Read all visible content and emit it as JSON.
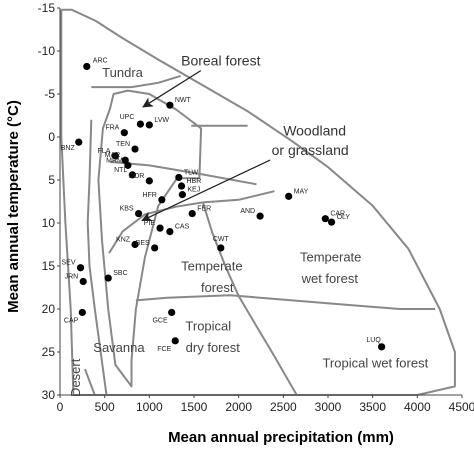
{
  "chart_data": {
    "type": "scatter",
    "xlabel": "Mean annual precipitation (mm)",
    "ylabel": "Mean annual temperature (°C)",
    "xlim": [
      0,
      4500
    ],
    "ylim": [
      -15,
      30
    ],
    "y_inverted": true,
    "grid": false,
    "x_ticks": [
      {
        "value": 0,
        "label": "0"
      },
      {
        "value": 500,
        "label": "500"
      },
      {
        "value": 1000,
        "label": "1000"
      },
      {
        "value": 1500,
        "label": "1500"
      },
      {
        "value": 2000,
        "label": "2000"
      },
      {
        "value": 2500,
        "label": "2500"
      },
      {
        "value": 3000,
        "label": "3000"
      },
      {
        "value": 3500,
        "label": "3500"
      },
      {
        "value": 4000,
        "label": "4000"
      },
      {
        "value": 4500,
        "label": "4500"
      }
    ],
    "y_ticks": [
      {
        "value": -15,
        "label": "-15"
      },
      {
        "value": -10,
        "label": "-10"
      },
      {
        "value": -5,
        "label": "-5"
      },
      {
        "value": 0,
        "label": "0"
      },
      {
        "value": 5,
        "label": "5"
      },
      {
        "value": 10,
        "label": "10"
      },
      {
        "value": 15,
        "label": "15"
      },
      {
        "value": 20,
        "label": "20"
      },
      {
        "value": 25,
        "label": "25"
      },
      {
        "value": 30,
        "label": "30"
      }
    ],
    "points": [
      {
        "label": "ARC",
        "x": 300,
        "y": -8.2
      },
      {
        "label": "NWT",
        "x": 1230,
        "y": -3.7
      },
      {
        "label": "UPC",
        "x": 900,
        "y": -1.5
      },
      {
        "label": "LVW",
        "x": 1000,
        "y": -1.4
      },
      {
        "label": "FRA",
        "x": 720,
        "y": -0.5
      },
      {
        "label": "BNZ",
        "x": 210,
        "y": 0.6
      },
      {
        "label": "TEN",
        "x": 840,
        "y": 1.4
      },
      {
        "label": "FLA",
        "x": 620,
        "y": 2.2
      },
      {
        "label": "MAR",
        "x": 730,
        "y": 2.7
      },
      {
        "label": "MRM",
        "x": 760,
        "y": 3.3
      },
      {
        "label": "NTL",
        "x": 810,
        "y": 4.4
      },
      {
        "label": "TLW",
        "x": 1330,
        "y": 4.7
      },
      {
        "label": "DOR",
        "x": 1000,
        "y": 5.1
      },
      {
        "label": "HBR",
        "x": 1360,
        "y": 5.7
      },
      {
        "label": "KEJ",
        "x": 1370,
        "y": 6.7
      },
      {
        "label": "HFR",
        "x": 1140,
        "y": 7.3
      },
      {
        "label": "MAY",
        "x": 2560,
        "y": 6.9
      },
      {
        "label": "KBS",
        "x": 880,
        "y": 8.9
      },
      {
        "label": "FER",
        "x": 1480,
        "y": 8.9
      },
      {
        "label": "AND",
        "x": 2240,
        "y": 9.2
      },
      {
        "label": "CAR",
        "x": 2970,
        "y": 9.5
      },
      {
        "label": "OLY",
        "x": 3040,
        "y": 9.9
      },
      {
        "label": "PIE",
        "x": 1120,
        "y": 10.6
      },
      {
        "label": "CAS",
        "x": 1230,
        "y": 11.0
      },
      {
        "label": "KNZ",
        "x": 840,
        "y": 12.5
      },
      {
        "label": "CWT",
        "x": 1800,
        "y": 12.9
      },
      {
        "label": "BES",
        "x": 1060,
        "y": 12.9
      },
      {
        "label": "SEV",
        "x": 230,
        "y": 15.2
      },
      {
        "label": "SBC",
        "x": 540,
        "y": 16.4
      },
      {
        "label": "JRN",
        "x": 260,
        "y": 16.8
      },
      {
        "label": "CAP",
        "x": 250,
        "y": 20.4
      },
      {
        "label": "GCE",
        "x": 1250,
        "y": 20.4
      },
      {
        "label": "FCE",
        "x": 1290,
        "y": 23.7
      },
      {
        "label": "LUQ",
        "x": 3600,
        "y": 24.4
      }
    ],
    "biome_labels": [
      {
        "text": "Tundra",
        "x": 700,
        "y": -7
      },
      {
        "text": "Temperate",
        "x": 1700,
        "y": 15.5
      },
      {
        "text": "forest",
        "x": 1760,
        "y": 18
      },
      {
        "text": "Temperate",
        "x": 3030,
        "y": 14.5
      },
      {
        "text": "wet forest",
        "x": 3020,
        "y": 17
      },
      {
        "text": "Tropical",
        "x": 1660,
        "y": 22.5
      },
      {
        "text": "dry forest",
        "x": 1710,
        "y": 25
      },
      {
        "text": "Savanna",
        "x": 660,
        "y": 25
      },
      {
        "text": "Desert",
        "x": 225,
        "y": 28
      },
      {
        "text": "Tropical wet forest",
        "x": 3530,
        "y": 26.8
      }
    ],
    "annotations": [
      {
        "text": "Boreal forest",
        "x": 1800,
        "y": -8.3,
        "arrow_to": [
          930,
          -3.5
        ]
      },
      {
        "text": "Woodland",
        "x": 2850,
        "y": -0.2
      },
      {
        "text": "or grassland",
        "x": 2800,
        "y": 2.1,
        "arrow_to": [
          920,
          9.7
        ]
      }
    ],
    "biome_boundaries": {
      "outer": [
        [
          15,
          -14.8
        ],
        [
          130,
          -14.8
        ],
        [
          400,
          -13.5
        ],
        [
          700,
          -11.5
        ],
        [
          1100,
          -9
        ],
        [
          1600,
          -6
        ],
        [
          2100,
          -3
        ],
        [
          2600,
          0.5
        ],
        [
          3000,
          3.5
        ],
        [
          3500,
          8
        ],
        [
          3900,
          13
        ],
        [
          4250,
          20
        ],
        [
          4420,
          25
        ],
        [
          4420,
          29
        ],
        [
          4000,
          30
        ],
        [
          150,
          30
        ],
        [
          120,
          20
        ],
        [
          60,
          10
        ],
        [
          15,
          0
        ],
        [
          15,
          -14.8
        ]
      ],
      "boreal": [
        [
          560,
          -3.3
        ],
        [
          600,
          -5
        ],
        [
          760,
          -5.4
        ],
        [
          1000,
          -5
        ],
        [
          1300,
          -3.2
        ],
        [
          1580,
          -1
        ],
        [
          1560,
          4.8
        ],
        [
          1310,
          4.8
        ],
        [
          1100,
          8
        ],
        [
          950,
          14
        ],
        [
          850,
          20
        ],
        [
          800,
          26
        ],
        [
          800,
          29
        ],
        [
          620,
          26.5
        ],
        [
          540,
          20
        ],
        [
          470,
          12
        ],
        [
          430,
          5
        ],
        [
          480,
          -1
        ],
        [
          560,
          -3.3
        ]
      ],
      "tundra_line": [
        [
          350,
          -5.8
        ],
        [
          800,
          -5.8
        ],
        [
          1100,
          -6.3
        ],
        [
          1350,
          -7.1
        ]
      ],
      "upper_right": [
        [
          1470,
          -1.3
        ],
        [
          2100,
          -1.3
        ]
      ],
      "mid_band": [
        [
          560,
          2.9
        ],
        [
          1000,
          3.3
        ],
        [
          1570,
          4.3
        ],
        [
          2200,
          5.5
        ]
      ],
      "temperate_left": [
        [
          550,
          13.5
        ],
        [
          700,
          11
        ],
        [
          950,
          9
        ],
        [
          1300,
          8.1
        ],
        [
          1600,
          7.6
        ]
      ],
      "temperate_right": [
        [
          1600,
          7.6
        ],
        [
          2000,
          7.3
        ],
        [
          2400,
          6.3
        ]
      ],
      "temperate_divider": [
        [
          1600,
          7.6
        ],
        [
          1700,
          11
        ],
        [
          1850,
          15
        ],
        [
          2000,
          18.5
        ],
        [
          2200,
          22
        ],
        [
          2400,
          25.5
        ],
        [
          2650,
          30
        ]
      ],
      "tropical_boundary": [
        [
          850,
          19
        ],
        [
          1200,
          18.7
        ],
        [
          1900,
          18.4
        ],
        [
          2600,
          19
        ],
        [
          3200,
          19.5
        ],
        [
          3800,
          20
        ],
        [
          4200,
          20
        ]
      ],
      "desert_line": [
        [
          350,
          -2
        ],
        [
          330,
          5
        ],
        [
          310,
          10
        ],
        [
          330,
          15
        ],
        [
          390,
          20
        ],
        [
          520,
          30
        ]
      ],
      "bottom_desert": [
        [
          280,
          27
        ],
        [
          390,
          30
        ]
      ]
    }
  }
}
